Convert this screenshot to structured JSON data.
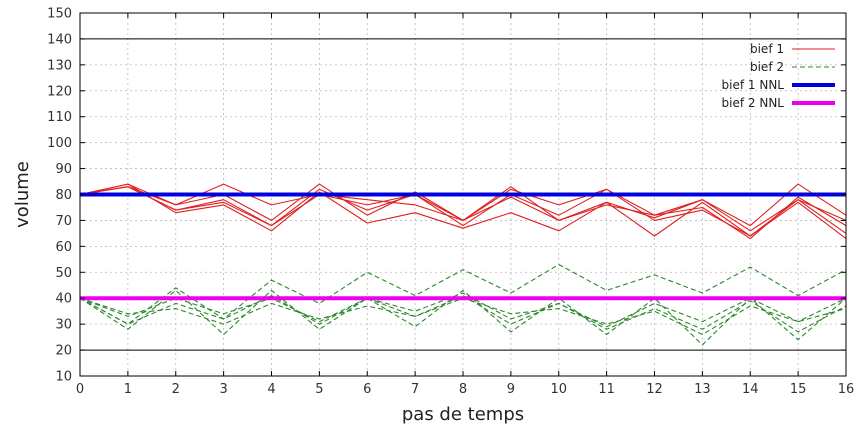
{
  "chart_data": {
    "type": "line",
    "xlabel": "pas de temps",
    "ylabel": "volume",
    "xlim": [
      0,
      16
    ],
    "ylim": [
      10,
      150
    ],
    "x_ticks": [
      0,
      1,
      2,
      3,
      4,
      5,
      6,
      7,
      8,
      9,
      10,
      11,
      12,
      13,
      14,
      15,
      16
    ],
    "y_ticks": [
      10,
      20,
      30,
      40,
      50,
      60,
      70,
      80,
      90,
      100,
      110,
      120,
      130,
      140,
      150
    ],
    "grid": true,
    "legend_position": "top-right",
    "reference_lines": [
      20,
      140
    ],
    "colors": {
      "bief1": "#e02020",
      "bief2": "#2a8a2a",
      "bief1_nnl": "#0000dd",
      "bief2_nnl": "#ee00ee"
    },
    "legend": [
      {
        "label": "bief 1",
        "style": "solid",
        "color": "#e02020"
      },
      {
        "label": "bief 2",
        "style": "dashed",
        "color": "#2a8a2a"
      },
      {
        "label": "bief 1 NNL",
        "style": "thick",
        "color": "#0000dd"
      },
      {
        "label": "bief 2 NNL",
        "style": "thick",
        "color": "#ee00ee"
      }
    ],
    "x": [
      0,
      1,
      2,
      3,
      4,
      5,
      6,
      7,
      8,
      9,
      10,
      11,
      12,
      13,
      14,
      15,
      16
    ],
    "series": [
      {
        "name": "bief 1",
        "group": "bief1",
        "values": [
          80,
          84,
          76,
          84,
          76,
          80,
          76,
          80,
          70,
          82,
          76,
          82,
          72,
          78,
          68,
          84,
          72
        ]
      },
      {
        "group": "bief1",
        "values": [
          80,
          83,
          74,
          78,
          68,
          82,
          74,
          80,
          68,
          80,
          72,
          82,
          70,
          74,
          64,
          78,
          70
        ]
      },
      {
        "group": "bief1",
        "values": [
          80,
          84,
          73,
          76,
          66,
          81,
          69,
          73,
          67,
          73,
          66,
          77,
          64,
          77,
          64,
          77,
          63
        ]
      },
      {
        "group": "bief1",
        "values": [
          80,
          83,
          76,
          80,
          70,
          84,
          72,
          81,
          70,
          83,
          70,
          76,
          72,
          75,
          63,
          79,
          68
        ]
      },
      {
        "group": "bief1",
        "values": [
          80,
          83,
          74,
          77,
          68,
          80,
          78,
          76,
          70,
          79,
          70,
          77,
          71,
          78,
          66,
          78,
          65
        ]
      },
      {
        "name": "bief 2",
        "group": "bief2",
        "values": [
          40,
          30,
          44,
          32,
          47,
          38,
          50,
          41,
          51,
          42,
          53,
          43,
          49,
          42,
          52,
          41,
          51
        ]
      },
      {
        "group": "bief2",
        "values": [
          40,
          28,
          43,
          26,
          43,
          28,
          40,
          29,
          43,
          27,
          40,
          26,
          40,
          22,
          40,
          24,
          40
        ]
      },
      {
        "group": "bief2",
        "values": [
          40,
          30,
          38,
          32,
          41,
          30,
          40,
          33,
          41,
          30,
          38,
          28,
          36,
          28,
          39,
          27,
          37
        ]
      },
      {
        "group": "bief2",
        "values": [
          40,
          33,
          40,
          34,
          40,
          31,
          40,
          35,
          42,
          32,
          38,
          29,
          38,
          31,
          40,
          31,
          40
        ]
      },
      {
        "group": "bief2",
        "values": [
          40,
          34,
          36,
          30,
          38,
          32,
          37,
          33,
          40,
          34,
          36,
          30,
          35,
          26,
          37,
          31,
          36
        ]
      },
      {
        "name": "bief 1 NNL",
        "group": "bief1_nnl",
        "values": [
          80,
          80,
          80,
          80,
          80,
          80,
          80,
          80,
          80,
          80,
          80,
          80,
          80,
          80,
          80,
          80,
          80
        ]
      },
      {
        "name": "bief 2 NNL",
        "group": "bief2_nnl",
        "values": [
          40,
          40,
          40,
          40,
          40,
          40,
          40,
          40,
          40,
          40,
          40,
          40,
          40,
          40,
          40,
          40,
          40
        ]
      }
    ]
  }
}
